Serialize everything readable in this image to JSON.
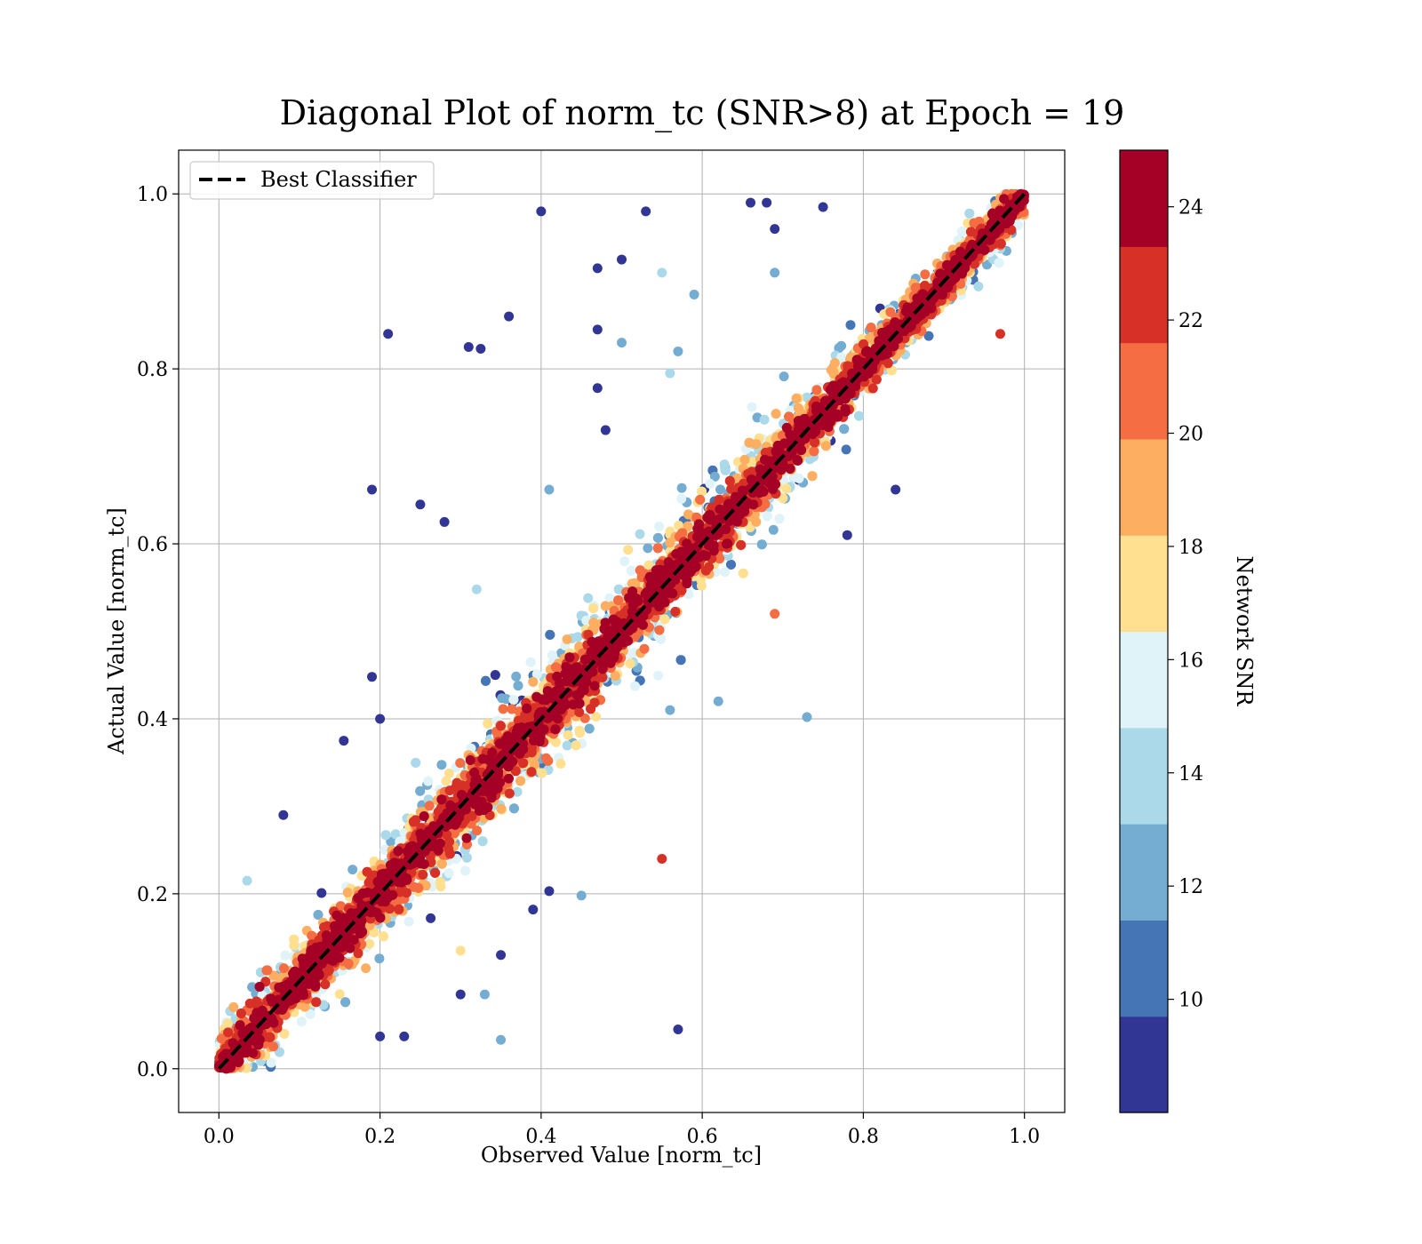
{
  "chart_data": {
    "type": "scatter",
    "title": "Diagonal Plot of norm_tc (SNR>8) at Epoch = 19",
    "xlabel": "Observed Value [norm_tc]",
    "ylabel": "Actual Value [norm_tc]",
    "xlim": [
      -0.05,
      1.05
    ],
    "ylim": [
      -0.05,
      1.05
    ],
    "xticks": [
      "0.0",
      "0.2",
      "0.4",
      "0.6",
      "0.8",
      "1.0"
    ],
    "yticks": [
      "0.0",
      "0.2",
      "0.4",
      "0.6",
      "0.8",
      "1.0"
    ],
    "grid": true,
    "legend": {
      "placement": "upper-left",
      "entries": [
        "Best Classifier"
      ]
    },
    "reference_line": {
      "name": "Best Classifier",
      "style": "dashed",
      "color": "#000000",
      "x": [
        0,
        1
      ],
      "y": [
        0,
        1
      ]
    },
    "colorbar": {
      "label": "Network SNR",
      "vmin": 8,
      "vmax": 25,
      "ticks": [
        "10",
        "12",
        "14",
        "16",
        "18",
        "20",
        "22",
        "24"
      ],
      "colors": [
        "#313695",
        "#4575b4",
        "#74add1",
        "#abd9e9",
        "#e0f3f8",
        "#fee090",
        "#fdae61",
        "#f46d43",
        "#d73027",
        "#a50026"
      ]
    },
    "highlighted_outliers": [
      {
        "x": 0.4,
        "y": 0.98,
        "snr": 9
      },
      {
        "x": 0.53,
        "y": 0.98,
        "snr": 9
      },
      {
        "x": 0.66,
        "y": 0.99,
        "snr": 9
      },
      {
        "x": 0.68,
        "y": 0.99,
        "snr": 9
      },
      {
        "x": 0.69,
        "y": 0.96,
        "snr": 9
      },
      {
        "x": 0.75,
        "y": 0.985,
        "snr": 9
      },
      {
        "x": 0.21,
        "y": 0.84,
        "snr": 9
      },
      {
        "x": 0.36,
        "y": 0.86,
        "snr": 9
      },
      {
        "x": 0.31,
        "y": 0.825,
        "snr": 9
      },
      {
        "x": 0.325,
        "y": 0.823,
        "snr": 9
      },
      {
        "x": 0.47,
        "y": 0.915,
        "snr": 9
      },
      {
        "x": 0.5,
        "y": 0.925,
        "snr": 9
      },
      {
        "x": 0.55,
        "y": 0.91,
        "snr": 14
      },
      {
        "x": 0.59,
        "y": 0.885,
        "snr": 12
      },
      {
        "x": 0.47,
        "y": 0.845,
        "snr": 9
      },
      {
        "x": 0.5,
        "y": 0.83,
        "snr": 12
      },
      {
        "x": 0.57,
        "y": 0.82,
        "snr": 13
      },
      {
        "x": 0.56,
        "y": 0.795,
        "snr": 14
      },
      {
        "x": 0.47,
        "y": 0.778,
        "snr": 9
      },
      {
        "x": 0.69,
        "y": 0.91,
        "snr": 13
      },
      {
        "x": 0.48,
        "y": 0.73,
        "snr": 9
      },
      {
        "x": 0.19,
        "y": 0.662,
        "snr": 9
      },
      {
        "x": 0.25,
        "y": 0.645,
        "snr": 9
      },
      {
        "x": 0.28,
        "y": 0.625,
        "snr": 9
      },
      {
        "x": 0.32,
        "y": 0.548,
        "snr": 14
      },
      {
        "x": 0.19,
        "y": 0.448,
        "snr": 9
      },
      {
        "x": 0.08,
        "y": 0.29,
        "snr": 9
      },
      {
        "x": 0.035,
        "y": 0.215,
        "snr": 14
      },
      {
        "x": 0.55,
        "y": 0.24,
        "snr": 22
      },
      {
        "x": 0.41,
        "y": 0.203,
        "snr": 9
      },
      {
        "x": 0.45,
        "y": 0.198,
        "snr": 12
      },
      {
        "x": 0.39,
        "y": 0.182,
        "snr": 9
      },
      {
        "x": 0.35,
        "y": 0.13,
        "snr": 9
      },
      {
        "x": 0.3,
        "y": 0.135,
        "snr": 18
      },
      {
        "x": 0.33,
        "y": 0.085,
        "snr": 12
      },
      {
        "x": 0.3,
        "y": 0.085,
        "snr": 9
      },
      {
        "x": 0.2,
        "y": 0.037,
        "snr": 9
      },
      {
        "x": 0.23,
        "y": 0.037,
        "snr": 9
      },
      {
        "x": 0.35,
        "y": 0.033,
        "snr": 12
      },
      {
        "x": 0.57,
        "y": 0.045,
        "snr": 9
      },
      {
        "x": 0.73,
        "y": 0.402,
        "snr": 12
      },
      {
        "x": 0.84,
        "y": 0.662,
        "snr": 9
      },
      {
        "x": 0.78,
        "y": 0.61,
        "snr": 9
      },
      {
        "x": 0.69,
        "y": 0.52,
        "snr": 21
      },
      {
        "x": 0.97,
        "y": 0.84,
        "snr": 22
      },
      {
        "x": 0.2,
        "y": 0.4,
        "snr": 9
      },
      {
        "x": 0.155,
        "y": 0.375,
        "snr": 9
      },
      {
        "x": 0.41,
        "y": 0.662,
        "snr": 12
      },
      {
        "x": 0.56,
        "y": 0.41,
        "snr": 12
      },
      {
        "x": 0.62,
        "y": 0.42,
        "snr": 12
      }
    ],
    "main_band": {
      "description_range": "dense cloud of points along the diagonal, x from 0 to 1",
      "approx_points": 9000,
      "band_half_width_y": 0.06
    }
  }
}
